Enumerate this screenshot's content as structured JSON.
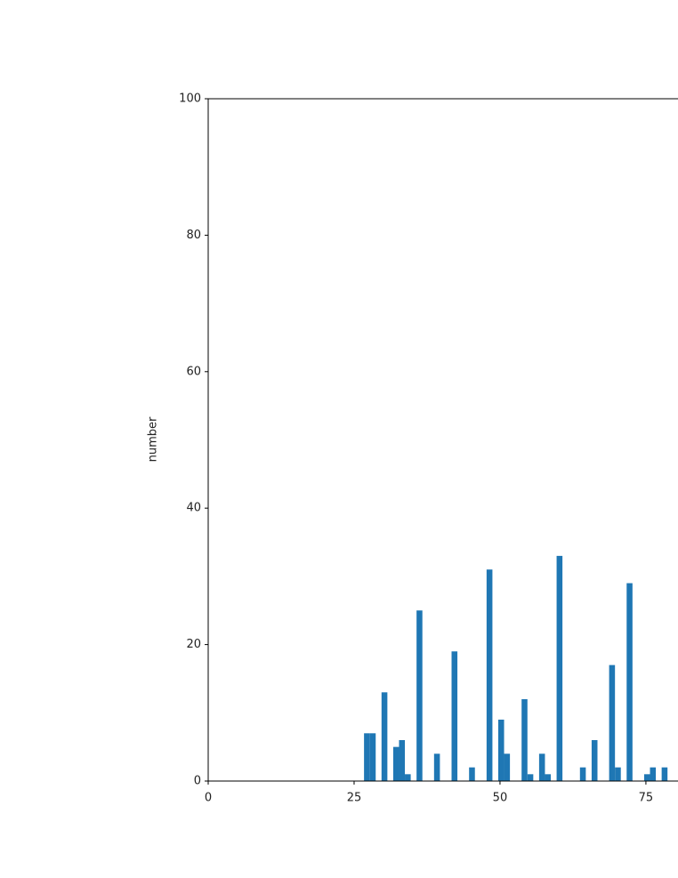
{
  "chart_data": {
    "type": "histogram",
    "y_label": "number",
    "color": "#1f77b4",
    "bins": [
      26.7,
      27.7,
      28.7,
      29.7,
      30.7,
      31.7,
      32.7,
      33.7,
      34.7,
      35.7,
      36.7,
      37.7,
      38.7,
      39.7,
      40.7,
      41.7,
      42.7,
      43.7,
      44.7,
      45.7,
      46.7,
      47.7,
      48.7,
      49.7,
      50.7,
      51.7,
      52.7,
      53.7,
      54.7,
      55.7,
      56.7,
      57.7,
      58.7,
      59.7,
      60.7,
      61.7,
      62.7,
      63.7,
      64.7,
      65.7,
      66.7,
      67.7,
      68.7,
      69.7,
      70.7,
      71.7,
      72.7,
      73.7,
      74.7,
      75.7,
      76.7,
      77.7,
      78.7
    ],
    "values": [
      7,
      7,
      0,
      13,
      0,
      5,
      6,
      1,
      0,
      25,
      0,
      0,
      4,
      0,
      0,
      19,
      0,
      0,
      2,
      0,
      0,
      31,
      0,
      9,
      4,
      0,
      0,
      12,
      1,
      0,
      4,
      1,
      0,
      33,
      0,
      0,
      0,
      2,
      0,
      6,
      0,
      0,
      17,
      2,
      0,
      29,
      0,
      0,
      1,
      2,
      0,
      2
    ],
    "xlim": [
      0,
      80.5
    ],
    "ylim": [
      0,
      100
    ],
    "xticks": [
      0,
      25,
      50,
      75
    ],
    "yticks": [
      0,
      20,
      40,
      60,
      80,
      100
    ]
  }
}
